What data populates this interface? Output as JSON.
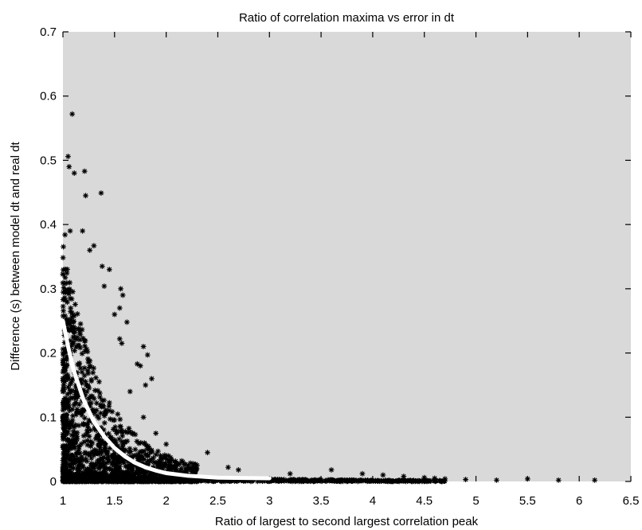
{
  "colors": {
    "background": "#ffffff",
    "plot_area": "#d9d9d9",
    "markers": "#000000",
    "fit_curve": "#ffffff"
  },
  "chart_data": {
    "type": "scatter",
    "title": "Ratio of correlation maxima vs error in dt",
    "xlabel": "Ratio of largest to second largest correlation peak",
    "ylabel": "Difference (s) between model dt and real dt",
    "xlim": [
      1,
      6.5
    ],
    "ylim": [
      0,
      0.7
    ],
    "xticks": [
      1,
      1.5,
      2,
      2.5,
      3,
      3.5,
      4,
      4.5,
      5,
      5.5,
      6,
      6.5
    ],
    "xtick_labels": [
      "1",
      "1.5",
      "2",
      "2.5",
      "3",
      "3.5",
      "4",
      "4.5",
      "5",
      "5.5",
      "6",
      "6.5"
    ],
    "yticks": [
      0,
      0.1,
      0.2,
      0.3,
      0.4,
      0.5,
      0.6,
      0.7
    ],
    "ytick_labels": [
      "0",
      "0.1",
      "0.2",
      "0.3",
      "0.4",
      "0.5",
      "0.6",
      "0.7"
    ],
    "grid": false,
    "marker": "*",
    "points": [
      [
        1.09,
        0.572
      ],
      [
        1.05,
        0.506
      ],
      [
        1.06,
        0.49
      ],
      [
        1.11,
        0.48
      ],
      [
        1.21,
        0.483
      ],
      [
        1.22,
        0.445
      ],
      [
        1.37,
        0.449
      ],
      [
        1.02,
        0.384
      ],
      [
        1.07,
        0.39
      ],
      [
        1.19,
        0.39
      ],
      [
        1.3,
        0.367
      ],
      [
        1.26,
        0.36
      ],
      [
        1.38,
        0.335
      ],
      [
        1.45,
        0.33
      ],
      [
        1.4,
        0.304
      ],
      [
        1.56,
        0.3
      ],
      [
        1.58,
        0.29
      ],
      [
        1.55,
        0.27
      ],
      [
        1.62,
        0.248
      ],
      [
        1.5,
        0.26
      ],
      [
        1.55,
        0.222
      ],
      [
        1.57,
        0.215
      ],
      [
        1.72,
        0.183
      ],
      [
        1.78,
        0.21
      ],
      [
        1.82,
        0.197
      ],
      [
        1.75,
        0.18
      ],
      [
        1.8,
        0.15
      ],
      [
        1.65,
        0.14
      ],
      [
        1.86,
        0.16
      ],
      [
        1.78,
        0.1
      ],
      [
        1.9,
        0.075
      ],
      [
        2.0,
        0.058
      ],
      [
        2.02,
        0.04
      ],
      [
        2.05,
        0.023
      ],
      [
        2.2,
        0.02
      ],
      [
        2.4,
        0.045
      ],
      [
        2.6,
        0.022
      ],
      [
        2.7,
        0.018
      ],
      [
        3.2,
        0.012
      ],
      [
        3.6,
        0.018
      ],
      [
        3.9,
        0.012
      ],
      [
        4.1,
        0.01
      ],
      [
        4.3,
        0.008
      ],
      [
        4.5,
        0.006
      ],
      [
        4.6,
        0.005
      ],
      [
        4.7,
        0.004
      ],
      [
        4.9,
        0.003
      ],
      [
        5.2,
        0.002
      ],
      [
        5.5,
        0.004
      ],
      [
        5.8,
        0.002
      ],
      [
        6.15,
        0.002
      ]
    ],
    "fit_curve": [
      [
        1.0,
        0.25
      ],
      [
        1.05,
        0.21
      ],
      [
        1.1,
        0.175
      ],
      [
        1.2,
        0.127
      ],
      [
        1.3,
        0.093
      ],
      [
        1.4,
        0.07
      ],
      [
        1.5,
        0.052
      ],
      [
        1.6,
        0.039
      ],
      [
        1.7,
        0.029
      ],
      [
        1.8,
        0.022
      ],
      [
        1.9,
        0.017
      ],
      [
        2.0,
        0.013
      ],
      [
        2.2,
        0.009
      ],
      [
        2.5,
        0.006
      ],
      [
        3.0,
        0.005
      ]
    ]
  }
}
